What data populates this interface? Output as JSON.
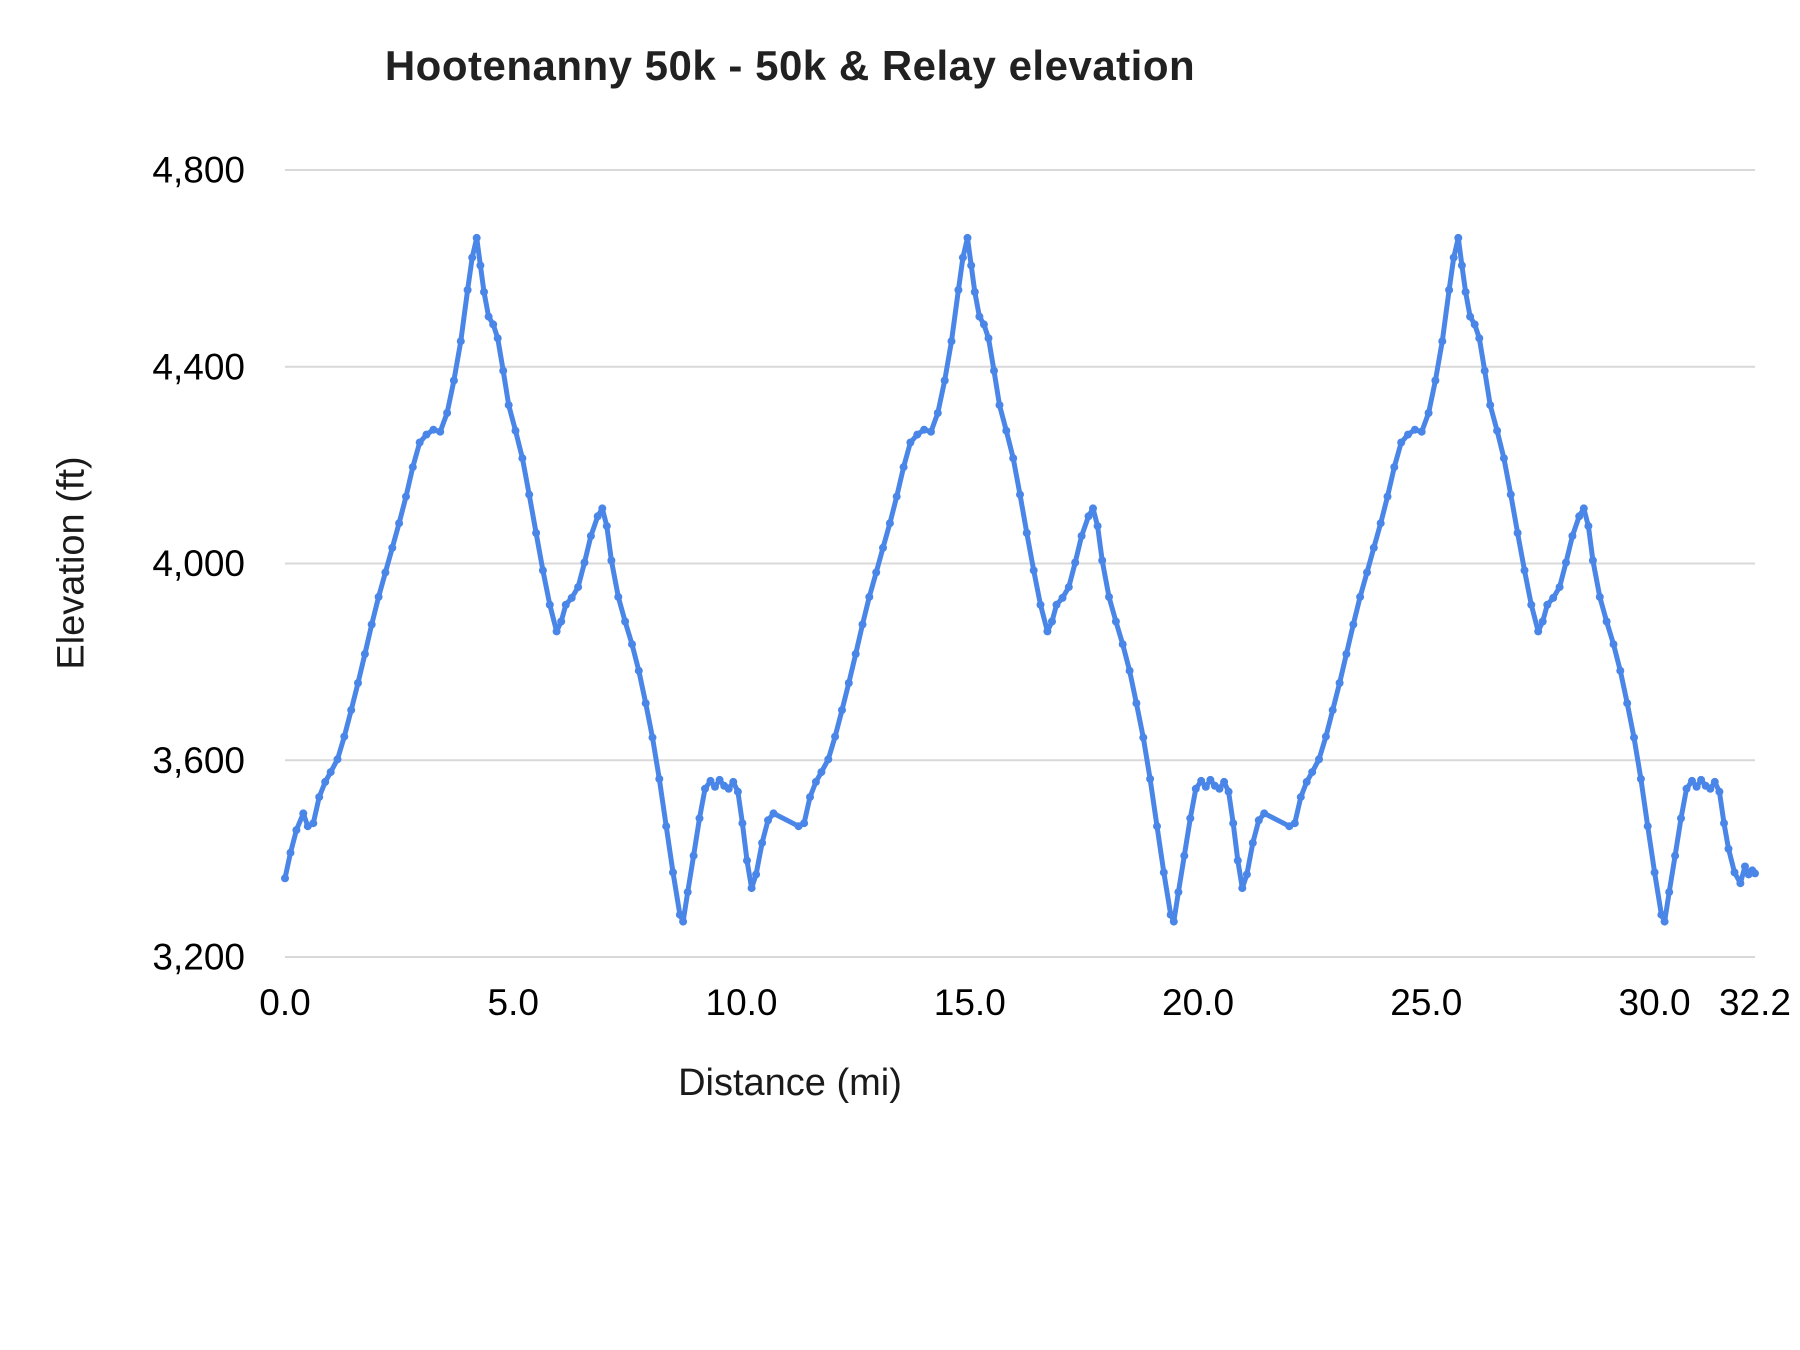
{
  "chart_data": {
    "type": "line",
    "title": "Hootenanny 50k - 50k & Relay elevation",
    "xlabel": "Distance (mi)",
    "ylabel": "Elevation (ft)",
    "xlim": [
      0,
      32.2
    ],
    "ylim": [
      3200,
      4800
    ],
    "grid": "horizontal",
    "legend": "none",
    "colors": {
      "line": "#4a86e8",
      "grid": "#d9d9d9",
      "axis_text": "#000000",
      "title_text": "#212121"
    },
    "yticks": [
      {
        "value": 3200,
        "label": "3,200"
      },
      {
        "value": 3600,
        "label": "3,600"
      },
      {
        "value": 4000,
        "label": "4,000"
      },
      {
        "value": 4400,
        "label": "4,400"
      },
      {
        "value": 4800,
        "label": "4,800"
      }
    ],
    "xticks": [
      {
        "value": 0,
        "label": "0.0"
      },
      {
        "value": 5,
        "label": "5.0"
      },
      {
        "value": 10,
        "label": "10.0"
      },
      {
        "value": 15,
        "label": "15.0"
      },
      {
        "value": 20,
        "label": "20.0"
      },
      {
        "value": 25,
        "label": "25.0"
      },
      {
        "value": 30,
        "label": "30.0"
      },
      {
        "value": 32.2,
        "label": "32.2"
      }
    ],
    "series": [
      {
        "name": "Elevation",
        "color": "#4a86e8",
        "points": [
          [
            0.0,
            3360
          ],
          [
            0.12,
            3412
          ],
          [
            0.25,
            3458
          ],
          [
            0.4,
            3492
          ],
          [
            0.5,
            3466
          ],
          [
            0.62,
            3472
          ],
          [
            0.75,
            3525
          ],
          [
            0.88,
            3556
          ],
          [
            1.0,
            3576
          ],
          [
            1.15,
            3602
          ],
          [
            1.3,
            3648
          ],
          [
            1.45,
            3702
          ],
          [
            1.6,
            3757
          ],
          [
            1.75,
            3816
          ],
          [
            1.9,
            3876
          ],
          [
            2.05,
            3932
          ],
          [
            2.2,
            3982
          ],
          [
            2.35,
            4032
          ],
          [
            2.5,
            4082
          ],
          [
            2.65,
            4136
          ],
          [
            2.8,
            4196
          ],
          [
            2.95,
            4246
          ],
          [
            3.1,
            4262
          ],
          [
            3.25,
            4272
          ],
          [
            3.4,
            4268
          ],
          [
            3.55,
            4306
          ],
          [
            3.7,
            4372
          ],
          [
            3.85,
            4452
          ],
          [
            4.0,
            4556
          ],
          [
            4.1,
            4622
          ],
          [
            4.2,
            4662
          ],
          [
            4.28,
            4606
          ],
          [
            4.36,
            4552
          ],
          [
            4.46,
            4502
          ],
          [
            4.56,
            4486
          ],
          [
            4.66,
            4458
          ],
          [
            4.78,
            4392
          ],
          [
            4.9,
            4322
          ],
          [
            5.05,
            4270
          ],
          [
            5.2,
            4214
          ],
          [
            5.35,
            4140
          ],
          [
            5.5,
            4062
          ],
          [
            5.65,
            3986
          ],
          [
            5.8,
            3916
          ],
          [
            5.95,
            3862
          ],
          [
            6.05,
            3882
          ],
          [
            6.15,
            3916
          ],
          [
            6.28,
            3930
          ],
          [
            6.42,
            3952
          ],
          [
            6.56,
            4002
          ],
          [
            6.7,
            4056
          ],
          [
            6.85,
            4096
          ],
          [
            6.95,
            4112
          ],
          [
            7.05,
            4076
          ],
          [
            7.15,
            4006
          ],
          [
            7.3,
            3932
          ],
          [
            7.45,
            3882
          ],
          [
            7.6,
            3836
          ],
          [
            7.75,
            3782
          ],
          [
            7.9,
            3716
          ],
          [
            8.05,
            3646
          ],
          [
            8.2,
            3562
          ],
          [
            8.35,
            3466
          ],
          [
            8.5,
            3372
          ],
          [
            8.65,
            3286
          ],
          [
            8.72,
            3272
          ],
          [
            8.82,
            3332
          ],
          [
            8.95,
            3406
          ],
          [
            9.08,
            3482
          ],
          [
            9.2,
            3542
          ],
          [
            9.32,
            3558
          ],
          [
            9.42,
            3546
          ],
          [
            9.52,
            3560
          ],
          [
            9.62,
            3548
          ],
          [
            9.72,
            3542
          ],
          [
            9.82,
            3556
          ],
          [
            9.92,
            3536
          ],
          [
            10.02,
            3472
          ],
          [
            10.12,
            3396
          ],
          [
            10.22,
            3340
          ],
          [
            10.32,
            3368
          ],
          [
            10.45,
            3432
          ],
          [
            10.58,
            3478
          ],
          [
            10.7,
            3492
          ],
          [
            11.25,
            3466
          ],
          [
            11.37,
            3472
          ],
          [
            11.5,
            3525
          ],
          [
            11.63,
            3556
          ],
          [
            11.75,
            3576
          ],
          [
            11.9,
            3602
          ],
          [
            12.05,
            3648
          ],
          [
            12.2,
            3702
          ],
          [
            12.35,
            3757
          ],
          [
            12.5,
            3816
          ],
          [
            12.65,
            3876
          ],
          [
            12.8,
            3932
          ],
          [
            12.95,
            3982
          ],
          [
            13.1,
            4032
          ],
          [
            13.25,
            4082
          ],
          [
            13.4,
            4136
          ],
          [
            13.55,
            4196
          ],
          [
            13.7,
            4246
          ],
          [
            13.85,
            4262
          ],
          [
            14.0,
            4272
          ],
          [
            14.15,
            4268
          ],
          [
            14.3,
            4306
          ],
          [
            14.45,
            4372
          ],
          [
            14.6,
            4452
          ],
          [
            14.75,
            4556
          ],
          [
            14.85,
            4622
          ],
          [
            14.95,
            4662
          ],
          [
            15.03,
            4606
          ],
          [
            15.11,
            4552
          ],
          [
            15.21,
            4502
          ],
          [
            15.31,
            4486
          ],
          [
            15.41,
            4458
          ],
          [
            15.53,
            4392
          ],
          [
            15.65,
            4322
          ],
          [
            15.8,
            4270
          ],
          [
            15.95,
            4214
          ],
          [
            16.1,
            4140
          ],
          [
            16.25,
            4062
          ],
          [
            16.4,
            3986
          ],
          [
            16.55,
            3916
          ],
          [
            16.7,
            3862
          ],
          [
            16.8,
            3882
          ],
          [
            16.9,
            3916
          ],
          [
            17.03,
            3930
          ],
          [
            17.17,
            3952
          ],
          [
            17.31,
            4002
          ],
          [
            17.45,
            4056
          ],
          [
            17.6,
            4096
          ],
          [
            17.7,
            4112
          ],
          [
            17.8,
            4076
          ],
          [
            17.9,
            4006
          ],
          [
            18.05,
            3932
          ],
          [
            18.2,
            3882
          ],
          [
            18.35,
            3836
          ],
          [
            18.5,
            3782
          ],
          [
            18.65,
            3716
          ],
          [
            18.8,
            3646
          ],
          [
            18.95,
            3562
          ],
          [
            19.1,
            3466
          ],
          [
            19.25,
            3372
          ],
          [
            19.4,
            3286
          ],
          [
            19.47,
            3272
          ],
          [
            19.57,
            3332
          ],
          [
            19.7,
            3406
          ],
          [
            19.83,
            3482
          ],
          [
            19.95,
            3542
          ],
          [
            20.07,
            3558
          ],
          [
            20.17,
            3546
          ],
          [
            20.27,
            3560
          ],
          [
            20.37,
            3548
          ],
          [
            20.47,
            3542
          ],
          [
            20.57,
            3556
          ],
          [
            20.67,
            3536
          ],
          [
            20.77,
            3472
          ],
          [
            20.87,
            3396
          ],
          [
            20.97,
            3340
          ],
          [
            21.07,
            3368
          ],
          [
            21.2,
            3432
          ],
          [
            21.33,
            3478
          ],
          [
            21.45,
            3492
          ],
          [
            22.0,
            3466
          ],
          [
            22.12,
            3472
          ],
          [
            22.25,
            3525
          ],
          [
            22.38,
            3556
          ],
          [
            22.5,
            3576
          ],
          [
            22.65,
            3602
          ],
          [
            22.8,
            3648
          ],
          [
            22.95,
            3702
          ],
          [
            23.1,
            3757
          ],
          [
            23.25,
            3816
          ],
          [
            23.4,
            3876
          ],
          [
            23.55,
            3932
          ],
          [
            23.7,
            3982
          ],
          [
            23.85,
            4032
          ],
          [
            24.0,
            4082
          ],
          [
            24.15,
            4136
          ],
          [
            24.3,
            4196
          ],
          [
            24.45,
            4246
          ],
          [
            24.6,
            4262
          ],
          [
            24.75,
            4272
          ],
          [
            24.9,
            4268
          ],
          [
            25.05,
            4306
          ],
          [
            25.2,
            4372
          ],
          [
            25.35,
            4452
          ],
          [
            25.5,
            4556
          ],
          [
            25.6,
            4622
          ],
          [
            25.7,
            4662
          ],
          [
            25.78,
            4606
          ],
          [
            25.86,
            4552
          ],
          [
            25.96,
            4502
          ],
          [
            26.06,
            4486
          ],
          [
            26.16,
            4458
          ],
          [
            26.28,
            4392
          ],
          [
            26.4,
            4322
          ],
          [
            26.55,
            4270
          ],
          [
            26.7,
            4214
          ],
          [
            26.85,
            4140
          ],
          [
            27.0,
            4062
          ],
          [
            27.15,
            3986
          ],
          [
            27.3,
            3916
          ],
          [
            27.45,
            3862
          ],
          [
            27.55,
            3882
          ],
          [
            27.65,
            3916
          ],
          [
            27.78,
            3930
          ],
          [
            27.92,
            3952
          ],
          [
            28.06,
            4002
          ],
          [
            28.2,
            4056
          ],
          [
            28.35,
            4096
          ],
          [
            28.45,
            4112
          ],
          [
            28.55,
            4076
          ],
          [
            28.65,
            4006
          ],
          [
            28.8,
            3932
          ],
          [
            28.95,
            3882
          ],
          [
            29.1,
            3836
          ],
          [
            29.25,
            3782
          ],
          [
            29.4,
            3716
          ],
          [
            29.55,
            3646
          ],
          [
            29.7,
            3562
          ],
          [
            29.85,
            3466
          ],
          [
            30.0,
            3372
          ],
          [
            30.15,
            3286
          ],
          [
            30.22,
            3272
          ],
          [
            30.32,
            3332
          ],
          [
            30.45,
            3406
          ],
          [
            30.58,
            3482
          ],
          [
            30.7,
            3542
          ],
          [
            30.82,
            3558
          ],
          [
            30.92,
            3546
          ],
          [
            31.02,
            3560
          ],
          [
            31.12,
            3548
          ],
          [
            31.22,
            3542
          ],
          [
            31.32,
            3556
          ],
          [
            31.42,
            3536
          ],
          [
            31.52,
            3472
          ],
          [
            31.62,
            3420
          ],
          [
            31.75,
            3372
          ],
          [
            31.88,
            3350
          ],
          [
            31.98,
            3384
          ],
          [
            32.06,
            3368
          ],
          [
            32.14,
            3376
          ],
          [
            32.2,
            3370
          ]
        ]
      }
    ]
  }
}
